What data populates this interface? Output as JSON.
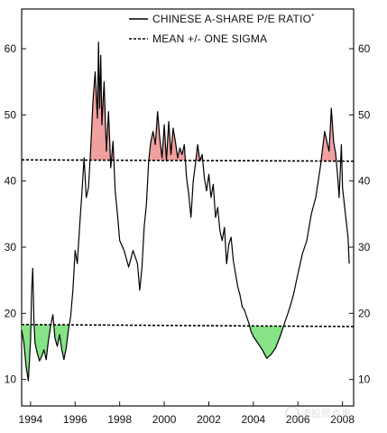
{
  "chart_data": {
    "type": "line",
    "title": "",
    "xlabel": "",
    "ylabel": "",
    "xlim": [
      1993.6,
      2008.5
    ],
    "ylim": [
      6,
      66
    ],
    "x_ticks": [
      1994,
      1996,
      1998,
      2000,
      2002,
      2004,
      2006,
      2008
    ],
    "x_tick_labels": [
      "1994",
      "1996",
      "1998",
      "2000",
      "2002",
      "2004",
      "2006",
      "2008"
    ],
    "y_ticks": [
      10,
      20,
      30,
      40,
      50,
      60
    ],
    "y_tick_labels": [
      "10",
      "20",
      "30",
      "40",
      "50",
      "60"
    ],
    "grid": false,
    "legend_position": "top-right",
    "legend": [
      {
        "label": "CHINESE A-SHARE P/E RATIO",
        "superscript": "*",
        "style": "solid"
      },
      {
        "label": "MEAN +/- ONE SIGMA",
        "style": "dashed"
      }
    ],
    "sigma_lines": [
      {
        "name": "upper",
        "y_start": 43.2,
        "y_end": 43.0
      },
      {
        "name": "lower",
        "y_start": 18.3,
        "y_end": 18.0
      }
    ],
    "fill_colors": {
      "above_upper": "#f1a0a0",
      "below_lower": "#86e486"
    },
    "line_color": "#000000",
    "series": [
      {
        "x": [
          1993.6,
          1993.7,
          1993.8,
          1993.9,
          1994.0,
          1994.05,
          1994.1,
          1994.15,
          1994.2,
          1994.3,
          1994.4,
          1994.5,
          1994.6,
          1994.7,
          1994.8,
          1994.9,
          1995.0,
          1995.1,
          1995.2,
          1995.3,
          1995.4,
          1995.5,
          1995.6,
          1995.7,
          1995.8,
          1995.9,
          1996.0,
          1996.1,
          1996.2,
          1996.3,
          1996.4,
          1996.5,
          1996.6,
          1996.7,
          1996.8,
          1996.9,
          1997.0,
          1997.05,
          1997.1,
          1997.15,
          1997.2,
          1997.3,
          1997.4,
          1997.5,
          1997.6,
          1997.7,
          1997.8,
          1997.9,
          1998.0,
          1998.2,
          1998.4,
          1998.6,
          1998.8,
          1998.9,
          1999.0,
          1999.1,
          1999.2,
          1999.3,
          1999.4,
          1999.5,
          1999.6,
          1999.7,
          1999.8,
          1999.9,
          2000.0,
          2000.1,
          2000.2,
          2000.3,
          2000.4,
          2000.5,
          2000.6,
          2000.7,
          2000.8,
          2000.9,
          2001.0,
          2001.1,
          2001.2,
          2001.3,
          2001.4,
          2001.5,
          2001.6,
          2001.7,
          2001.8,
          2001.9,
          2002.0,
          2002.1,
          2002.2,
          2002.3,
          2002.4,
          2002.5,
          2002.6,
          2002.7,
          2002.8,
          2002.9,
          2003.0,
          2003.1,
          2003.2,
          2003.3,
          2003.4,
          2003.5,
          2003.6,
          2003.7,
          2003.8,
          2003.9,
          2004.0,
          2004.2,
          2004.4,
          2004.6,
          2004.8,
          2005.0,
          2005.2,
          2005.4,
          2005.6,
          2005.8,
          2006.0,
          2006.2,
          2006.4,
          2006.6,
          2006.8,
          2007.0,
          2007.2,
          2007.4,
          2007.5,
          2007.6,
          2007.7,
          2007.8,
          2007.85,
          2007.9,
          2007.95,
          2008.0,
          2008.1,
          2008.2,
          2008.25,
          2008.3
        ],
        "y": [
          17.5,
          15.5,
          12.0,
          9.8,
          16.0,
          23.5,
          26.8,
          19.0,
          15.5,
          14.0,
          12.8,
          13.5,
          14.5,
          13.0,
          15.8,
          18.0,
          19.8,
          16.2,
          15.0,
          16.8,
          14.5,
          13.0,
          14.8,
          17.5,
          19.5,
          23.5,
          29.5,
          27.5,
          33.0,
          38.0,
          43.5,
          37.5,
          39.0,
          45.0,
          52.0,
          56.5,
          49.5,
          61.0,
          51.0,
          59.0,
          48.5,
          55.0,
          44.5,
          50.5,
          42.0,
          46.0,
          38.5,
          35.0,
          31.0,
          29.5,
          27.0,
          29.5,
          27.5,
          23.5,
          27.0,
          33.0,
          36.5,
          43.0,
          46.0,
          47.5,
          45.5,
          50.5,
          46.5,
          43.5,
          48.5,
          43.0,
          49.0,
          44.0,
          48.0,
          46.0,
          43.5,
          45.0,
          44.0,
          45.5,
          40.5,
          38.0,
          34.5,
          40.0,
          42.5,
          45.5,
          43.0,
          44.0,
          40.5,
          38.5,
          41.0,
          37.5,
          39.5,
          34.5,
          36.0,
          32.5,
          31.0,
          33.0,
          27.5,
          30.5,
          31.5,
          28.0,
          26.0,
          24.0,
          22.8,
          21.0,
          20.5,
          19.5,
          18.5,
          17.2,
          16.5,
          15.5,
          14.5,
          13.2,
          13.8,
          14.8,
          16.5,
          18.5,
          20.5,
          22.8,
          26.0,
          29.0,
          31.0,
          35.0,
          37.5,
          42.0,
          47.5,
          44.5,
          51.0,
          46.0,
          44.0,
          40.0,
          37.5,
          41.5,
          45.5,
          39.0,
          36.0,
          33.0,
          31.5,
          27.5
        ]
      }
    ],
    "watermark_text": "港股那点事"
  }
}
